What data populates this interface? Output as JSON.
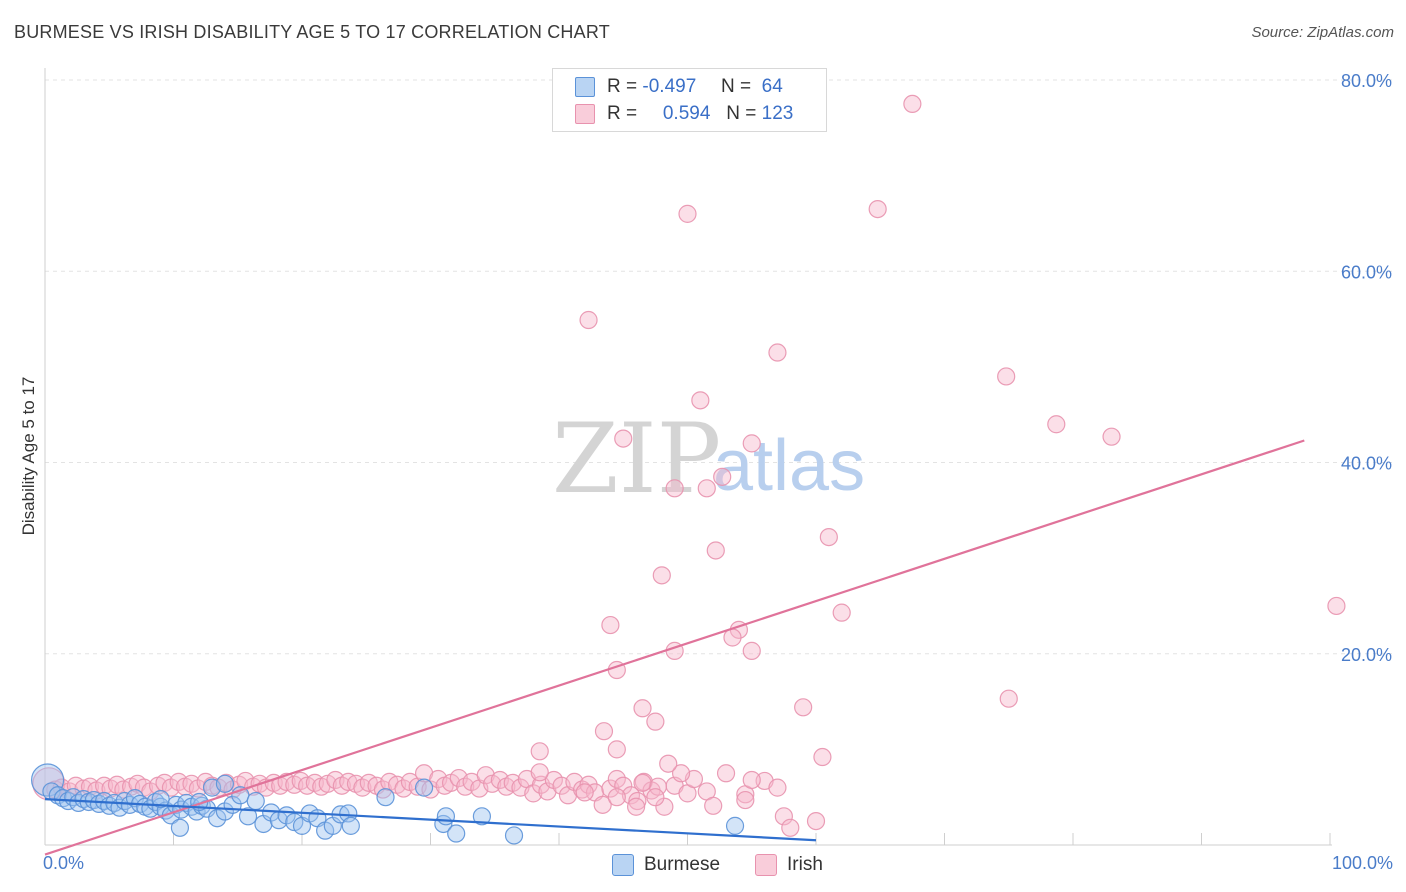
{
  "title": "BURMESE VS IRISH DISABILITY AGE 5 TO 17 CORRELATION CHART",
  "source": "Source: ZipAtlas.com",
  "watermark": {
    "zip": "ZIP",
    "atlas": "atlas"
  },
  "legend": {
    "rows": [
      {
        "r_label": "R =",
        "r_value": "-0.497",
        "n_label": "N =",
        "n_value": "64"
      },
      {
        "r_label": "R =",
        "r_value": "0.594",
        "n_label": "N =",
        "n_value": "123"
      }
    ]
  },
  "bottom_legend": {
    "burmese": "Burmese",
    "irish": "Irish"
  },
  "colors": {
    "burmese_fill": "#9ec3ef",
    "burmese_stroke": "#5b92d8",
    "burmese_line": "#2f6fce",
    "irish_fill": "#f6b8cb",
    "irish_stroke": "#e892ae",
    "irish_line": "#e0739a",
    "tick_text": "#4a7cc9",
    "grid": "#e3e3e3"
  },
  "chart_data": {
    "type": "scatter",
    "title": "BURMESE VS IRISH DISABILITY AGE 5 TO 17 CORRELATION CHART",
    "xlabel": "",
    "ylabel": "Disability Age 5 to 17",
    "xlim": [
      0,
      100
    ],
    "ylim": [
      0,
      80
    ],
    "x_tick_labels": [
      "0.0%",
      "100.0%"
    ],
    "y_ticks": [
      20,
      40,
      60,
      80
    ],
    "y_tick_labels": [
      "20.0%",
      "40.0%",
      "60.0%",
      "80.0%"
    ],
    "legend_placement": "top-center",
    "series": [
      {
        "name": "Burmese",
        "r": -0.497,
        "n": 64,
        "trend": {
          "x": [
            0,
            60
          ],
          "y": [
            4.8,
            0.5
          ]
        },
        "points": [
          {
            "x": 0.2,
            "y": 6.8,
            "big": true
          },
          {
            "x": 0.5,
            "y": 5.6
          },
          {
            "x": 1.0,
            "y": 5.2
          },
          {
            "x": 1.4,
            "y": 4.9
          },
          {
            "x": 1.8,
            "y": 4.6
          },
          {
            "x": 2.2,
            "y": 5.0
          },
          {
            "x": 2.6,
            "y": 4.4
          },
          {
            "x": 3.0,
            "y": 4.8
          },
          {
            "x": 3.4,
            "y": 4.5
          },
          {
            "x": 3.8,
            "y": 4.7
          },
          {
            "x": 4.2,
            "y": 4.3
          },
          {
            "x": 4.6,
            "y": 4.6
          },
          {
            "x": 5.0,
            "y": 4.1
          },
          {
            "x": 5.4,
            "y": 4.4
          },
          {
            "x": 5.8,
            "y": 3.9
          },
          {
            "x": 6.2,
            "y": 4.6
          },
          {
            "x": 6.6,
            "y": 4.2
          },
          {
            "x": 7.0,
            "y": 4.9
          },
          {
            "x": 7.4,
            "y": 4.3
          },
          {
            "x": 7.8,
            "y": 4.0
          },
          {
            "x": 8.2,
            "y": 3.8
          },
          {
            "x": 8.6,
            "y": 4.5
          },
          {
            "x": 9.0,
            "y": 4.0
          },
          {
            "x": 9.4,
            "y": 3.6
          },
          {
            "x": 9.8,
            "y": 3.1
          },
          {
            "x": 10.2,
            "y": 4.2
          },
          {
            "x": 10.6,
            "y": 3.7
          },
          {
            "x": 11.0,
            "y": 4.4
          },
          {
            "x": 11.4,
            "y": 4.0
          },
          {
            "x": 11.8,
            "y": 3.5
          },
          {
            "x": 12.2,
            "y": 4.1
          },
          {
            "x": 12.6,
            "y": 3.8
          },
          {
            "x": 13.0,
            "y": 6.0
          },
          {
            "x": 13.4,
            "y": 2.8
          },
          {
            "x": 14.0,
            "y": 3.5
          },
          {
            "x": 14.6,
            "y": 4.2
          },
          {
            "x": 15.2,
            "y": 5.2
          },
          {
            "x": 15.8,
            "y": 3.0
          },
          {
            "x": 16.4,
            "y": 4.6
          },
          {
            "x": 17.0,
            "y": 2.2
          },
          {
            "x": 17.6,
            "y": 3.4
          },
          {
            "x": 18.2,
            "y": 2.6
          },
          {
            "x": 18.8,
            "y": 3.1
          },
          {
            "x": 19.4,
            "y": 2.4
          },
          {
            "x": 20.0,
            "y": 2.0
          },
          {
            "x": 20.6,
            "y": 3.3
          },
          {
            "x": 21.2,
            "y": 2.8
          },
          {
            "x": 21.8,
            "y": 1.5
          },
          {
            "x": 22.4,
            "y": 2.0
          },
          {
            "x": 23.0,
            "y": 3.2
          },
          {
            "x": 23.6,
            "y": 3.3
          },
          {
            "x": 10.5,
            "y": 1.8
          },
          {
            "x": 14.0,
            "y": 6.4
          },
          {
            "x": 12.0,
            "y": 4.5
          },
          {
            "x": 9.0,
            "y": 4.8
          },
          {
            "x": 26.5,
            "y": 5.0
          },
          {
            "x": 23.8,
            "y": 2.0
          },
          {
            "x": 29.5,
            "y": 6.0
          },
          {
            "x": 31.0,
            "y": 2.2
          },
          {
            "x": 32.0,
            "y": 1.2
          },
          {
            "x": 34.0,
            "y": 3.0
          },
          {
            "x": 31.2,
            "y": 3.0
          },
          {
            "x": 36.5,
            "y": 1.0
          },
          {
            "x": 53.7,
            "y": 2.0
          }
        ]
      },
      {
        "name": "Irish",
        "r": 0.594,
        "n": 123,
        "trend": {
          "x": [
            0,
            98
          ],
          "y": [
            -1.0,
            42.3
          ]
        },
        "points": [
          {
            "x": 0.3,
            "y": 6.4,
            "big": true
          },
          {
            "x": 0.8,
            "y": 5.8
          },
          {
            "x": 1.3,
            "y": 6.0
          },
          {
            "x": 1.9,
            "y": 5.6
          },
          {
            "x": 2.4,
            "y": 6.2
          },
          {
            "x": 3.0,
            "y": 5.9
          },
          {
            "x": 3.5,
            "y": 6.1
          },
          {
            "x": 4.0,
            "y": 5.7
          },
          {
            "x": 4.6,
            "y": 6.2
          },
          {
            "x": 5.1,
            "y": 5.9
          },
          {
            "x": 5.6,
            "y": 6.3
          },
          {
            "x": 6.1,
            "y": 5.8
          },
          {
            "x": 6.7,
            "y": 6.1
          },
          {
            "x": 7.2,
            "y": 6.4
          },
          {
            "x": 7.7,
            "y": 6.0
          },
          {
            "x": 8.2,
            "y": 5.6
          },
          {
            "x": 8.8,
            "y": 6.2
          },
          {
            "x": 9.3,
            "y": 6.5
          },
          {
            "x": 9.8,
            "y": 6.0
          },
          {
            "x": 10.4,
            "y": 6.6
          },
          {
            "x": 10.9,
            "y": 6.1
          },
          {
            "x": 11.4,
            "y": 6.4
          },
          {
            "x": 11.9,
            "y": 5.9
          },
          {
            "x": 12.5,
            "y": 6.6
          },
          {
            "x": 13.0,
            "y": 6.2
          },
          {
            "x": 13.5,
            "y": 6.0
          },
          {
            "x": 14.1,
            "y": 6.5
          },
          {
            "x": 14.6,
            "y": 5.8
          },
          {
            "x": 15.1,
            "y": 6.3
          },
          {
            "x": 15.6,
            "y": 6.7
          },
          {
            "x": 16.2,
            "y": 6.1
          },
          {
            "x": 16.7,
            "y": 6.4
          },
          {
            "x": 17.2,
            "y": 6.0
          },
          {
            "x": 17.8,
            "y": 6.5
          },
          {
            "x": 18.3,
            "y": 6.2
          },
          {
            "x": 18.8,
            "y": 6.6
          },
          {
            "x": 19.4,
            "y": 6.3
          },
          {
            "x": 19.9,
            "y": 6.7
          },
          {
            "x": 20.4,
            "y": 6.2
          },
          {
            "x": 21.0,
            "y": 6.5
          },
          {
            "x": 21.5,
            "y": 6.1
          },
          {
            "x": 22.0,
            "y": 6.4
          },
          {
            "x": 22.6,
            "y": 6.8
          },
          {
            "x": 23.1,
            "y": 6.2
          },
          {
            "x": 23.6,
            "y": 6.6
          },
          {
            "x": 24.2,
            "y": 6.4
          },
          {
            "x": 24.7,
            "y": 6.0
          },
          {
            "x": 25.2,
            "y": 6.5
          },
          {
            "x": 25.8,
            "y": 6.2
          },
          {
            "x": 26.3,
            "y": 5.8
          },
          {
            "x": 26.8,
            "y": 6.6
          },
          {
            "x": 27.4,
            "y": 6.3
          },
          {
            "x": 27.9,
            "y": 5.9
          },
          {
            "x": 28.4,
            "y": 6.6
          },
          {
            "x": 29.0,
            "y": 6.1
          },
          {
            "x": 29.5,
            "y": 7.5
          },
          {
            "x": 30.0,
            "y": 5.8
          },
          {
            "x": 30.6,
            "y": 6.9
          },
          {
            "x": 31.1,
            "y": 6.2
          },
          {
            "x": 31.6,
            "y": 6.5
          },
          {
            "x": 32.2,
            "y": 7.0
          },
          {
            "x": 32.7,
            "y": 6.1
          },
          {
            "x": 33.2,
            "y": 6.6
          },
          {
            "x": 33.8,
            "y": 5.9
          },
          {
            "x": 34.3,
            "y": 7.3
          },
          {
            "x": 34.8,
            "y": 6.4
          },
          {
            "x": 35.4,
            "y": 6.8
          },
          {
            "x": 35.9,
            "y": 6.1
          },
          {
            "x": 36.4,
            "y": 6.5
          },
          {
            "x": 37.0,
            "y": 6.0
          },
          {
            "x": 37.5,
            "y": 6.9
          },
          {
            "x": 38.0,
            "y": 5.4
          },
          {
            "x": 38.6,
            "y": 6.3
          },
          {
            "x": 39.1,
            "y": 5.6
          },
          {
            "x": 39.6,
            "y": 6.8
          },
          {
            "x": 40.2,
            "y": 6.2
          },
          {
            "x": 40.7,
            "y": 5.2
          },
          {
            "x": 41.2,
            "y": 6.6
          },
          {
            "x": 41.8,
            "y": 5.8
          },
          {
            "x": 42.3,
            "y": 6.3
          },
          {
            "x": 42.8,
            "y": 5.5
          },
          {
            "x": 43.4,
            "y": 4.2
          },
          {
            "x": 44.0,
            "y": 5.9
          },
          {
            "x": 44.5,
            "y": 6.9
          },
          {
            "x": 45.0,
            "y": 6.2
          },
          {
            "x": 45.6,
            "y": 5.2
          },
          {
            "x": 46.1,
            "y": 4.6
          },
          {
            "x": 46.6,
            "y": 6.6
          },
          {
            "x": 47.2,
            "y": 5.7
          },
          {
            "x": 47.7,
            "y": 6.1
          },
          {
            "x": 48.2,
            "y": 4.0
          },
          {
            "x": 49.0,
            "y": 6.2
          },
          {
            "x": 50.0,
            "y": 5.4
          },
          {
            "x": 50.5,
            "y": 6.9
          },
          {
            "x": 51.5,
            "y": 5.6
          },
          {
            "x": 52.0,
            "y": 4.1
          },
          {
            "x": 53.0,
            "y": 7.5
          },
          {
            "x": 54.5,
            "y": 5.3
          },
          {
            "x": 56.0,
            "y": 6.7
          },
          {
            "x": 57.0,
            "y": 6.0
          },
          {
            "x": 38.5,
            "y": 9.8
          },
          {
            "x": 38.5,
            "y": 7.6
          },
          {
            "x": 43.5,
            "y": 11.9
          },
          {
            "x": 44.5,
            "y": 10.0
          },
          {
            "x": 46.5,
            "y": 6.5
          },
          {
            "x": 49.5,
            "y": 7.5
          },
          {
            "x": 46.0,
            "y": 4.0
          },
          {
            "x": 44.5,
            "y": 5.0
          },
          {
            "x": 42.0,
            "y": 5.5
          },
          {
            "x": 54.5,
            "y": 4.7
          },
          {
            "x": 57.5,
            "y": 3.0
          },
          {
            "x": 58.0,
            "y": 1.8
          },
          {
            "x": 60.0,
            "y": 2.5
          },
          {
            "x": 55.0,
            "y": 6.8
          },
          {
            "x": 48.5,
            "y": 8.5
          },
          {
            "x": 47.5,
            "y": 5.0
          }
        ],
        "outliers": [
          {
            "x": 67.5,
            "y": 77.5
          },
          {
            "x": 50.0,
            "y": 66.0
          },
          {
            "x": 64.8,
            "y": 66.5
          },
          {
            "x": 42.3,
            "y": 54.9
          },
          {
            "x": 57.0,
            "y": 51.5
          },
          {
            "x": 74.8,
            "y": 49.0
          },
          {
            "x": 51.0,
            "y": 46.5
          },
          {
            "x": 78.7,
            "y": 44.0
          },
          {
            "x": 83.0,
            "y": 42.7
          },
          {
            "x": 45.0,
            "y": 42.5
          },
          {
            "x": 55.0,
            "y": 42.0
          },
          {
            "x": 52.7,
            "y": 38.5
          },
          {
            "x": 49.0,
            "y": 37.3
          },
          {
            "x": 51.5,
            "y": 37.3
          },
          {
            "x": 61.0,
            "y": 32.2
          },
          {
            "x": 52.2,
            "y": 30.8
          },
          {
            "x": 48.0,
            "y": 28.2
          },
          {
            "x": 44.0,
            "y": 23.0
          },
          {
            "x": 62.0,
            "y": 24.3
          },
          {
            "x": 54.0,
            "y": 22.5
          },
          {
            "x": 53.5,
            "y": 21.7
          },
          {
            "x": 55.0,
            "y": 20.3
          },
          {
            "x": 49.0,
            "y": 20.3
          },
          {
            "x": 44.5,
            "y": 18.3
          },
          {
            "x": 100.5,
            "y": 25.0
          },
          {
            "x": 75.0,
            "y": 15.3
          },
          {
            "x": 59.0,
            "y": 14.4
          },
          {
            "x": 46.5,
            "y": 14.3
          },
          {
            "x": 47.5,
            "y": 12.9
          },
          {
            "x": 60.5,
            "y": 9.2
          }
        ]
      }
    ]
  }
}
